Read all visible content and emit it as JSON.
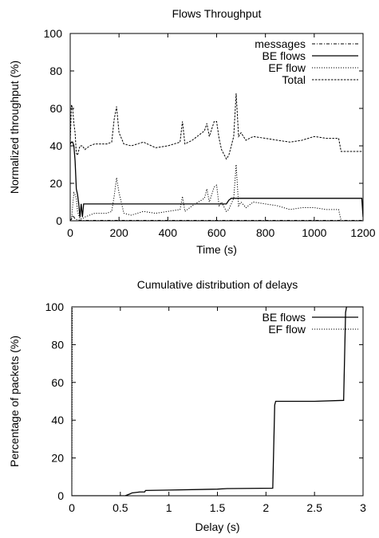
{
  "chart_data": [
    {
      "type": "line",
      "title": "Flows Throughput",
      "xlabel": "Time (s)",
      "ylabel": "Normalized throughput (%)",
      "xlim": [
        0,
        1200
      ],
      "ylim": [
        0,
        100
      ],
      "xticks": [
        0,
        200,
        400,
        600,
        800,
        1000,
        1200
      ],
      "yticks": [
        0,
        20,
        40,
        60,
        80,
        100
      ],
      "grid": false,
      "legend": "top-right",
      "series": [
        {
          "name": "messages",
          "style": "dash-dot",
          "color": "#000000",
          "x": [
            0,
            5,
            10,
            15,
            20,
            30,
            40,
            50,
            60,
            100,
            200,
            300,
            400,
            500,
            600,
            700,
            800,
            900,
            1000,
            1100,
            1200
          ],
          "y": [
            0,
            1,
            3,
            2,
            1,
            0.5,
            0.3,
            0.2,
            0.2,
            0.2,
            0.2,
            0.2,
            0.2,
            0.2,
            0.2,
            0.2,
            0.2,
            0.2,
            0.2,
            0.2,
            0.2
          ]
        },
        {
          "name": "BE flows",
          "style": "solid",
          "color": "#000000",
          "x": [
            0,
            5,
            10,
            15,
            20,
            25,
            30,
            35,
            40,
            45,
            50,
            55,
            60,
            100,
            200,
            300,
            400,
            500,
            600,
            640,
            650,
            660,
            700,
            800,
            900,
            1000,
            1100,
            1195,
            1200
          ],
          "y": [
            41,
            42,
            42,
            40,
            32,
            17,
            14,
            9,
            2,
            9,
            2,
            9,
            9,
            9,
            9,
            9,
            9,
            9,
            9,
            9,
            11,
            12,
            12,
            12,
            12,
            12,
            12,
            12,
            2
          ]
        },
        {
          "name": "EF flow",
          "style": "dotted",
          "color": "#000000",
          "x": [
            0,
            5,
            10,
            15,
            20,
            25,
            30,
            40,
            50,
            60,
            80,
            100,
            150,
            170,
            180,
            190,
            200,
            220,
            250,
            300,
            350,
            400,
            450,
            460,
            470,
            500,
            550,
            560,
            570,
            590,
            600,
            610,
            620,
            640,
            650,
            670,
            680,
            690,
            700,
            720,
            750,
            800,
            850,
            900,
            950,
            1000,
            1050,
            1100,
            1105,
            1110,
            1200
          ],
          "y": [
            0,
            0,
            8,
            15,
            14,
            12,
            5,
            1,
            1,
            2,
            3,
            4,
            4,
            5,
            13,
            23,
            15,
            4,
            3,
            5,
            4,
            5,
            6,
            13,
            5,
            8,
            12,
            17,
            10,
            18,
            19,
            8,
            10,
            5,
            6,
            12,
            30,
            8,
            10,
            7,
            10,
            9,
            8,
            6,
            7,
            7,
            6,
            6,
            3,
            0,
            0
          ]
        },
        {
          "name": "Total",
          "style": "short-dash",
          "color": "#000000",
          "x": [
            0,
            5,
            10,
            15,
            20,
            25,
            30,
            40,
            50,
            60,
            80,
            100,
            150,
            170,
            180,
            190,
            200,
            220,
            250,
            300,
            350,
            400,
            450,
            460,
            470,
            500,
            550,
            560,
            570,
            590,
            600,
            610,
            620,
            640,
            650,
            670,
            680,
            690,
            700,
            720,
            750,
            800,
            850,
            900,
            950,
            1000,
            1050,
            1100,
            1110,
            1200
          ],
          "y": [
            42,
            62,
            60,
            52,
            47,
            36,
            35,
            40,
            40,
            38,
            40,
            41,
            41,
            42,
            54,
            61,
            47,
            41,
            40,
            42,
            39,
            40,
            42,
            53,
            41,
            43,
            48,
            52,
            45,
            53,
            53,
            44,
            38,
            33,
            35,
            45,
            68,
            45,
            47,
            43,
            45,
            44,
            43,
            42,
            43,
            45,
            44,
            44,
            37,
            37
          ]
        }
      ]
    },
    {
      "type": "line",
      "title": "Cumulative distribution of delays",
      "xlabel": "Delay (s)",
      "ylabel": "Percentage of packets (%)",
      "xlim": [
        0,
        3
      ],
      "ylim": [
        0,
        100
      ],
      "xticks": [
        0,
        0.5,
        1,
        1.5,
        2,
        2.5,
        3
      ],
      "xtick_labels": [
        "0",
        "0.5",
        "1",
        "1.5",
        "2",
        "2.5",
        "3"
      ],
      "yticks": [
        0,
        20,
        40,
        60,
        80,
        100
      ],
      "grid": false,
      "legend": "top-right",
      "series": [
        {
          "name": "BE flows",
          "style": "solid",
          "color": "#000000",
          "x": [
            0,
            0.55,
            0.6,
            0.62,
            0.7,
            0.75,
            0.76,
            1.0,
            1.5,
            1.6,
            2.07,
            2.09,
            2.1,
            2.2,
            2.5,
            2.8,
            2.82,
            2.83,
            2.9,
            3.0
          ],
          "y": [
            0,
            0,
            1,
            1.5,
            2,
            2,
            2.8,
            3,
            3.5,
            3.8,
            4,
            48,
            50,
            50,
            50,
            50.5,
            97,
            100,
            100,
            100
          ]
        },
        {
          "name": "EF flow",
          "style": "dotted",
          "color": "#000000",
          "x": [
            0,
            0.005,
            0.01,
            3.0
          ],
          "y": [
            0,
            99,
            100,
            100
          ]
        }
      ]
    }
  ]
}
